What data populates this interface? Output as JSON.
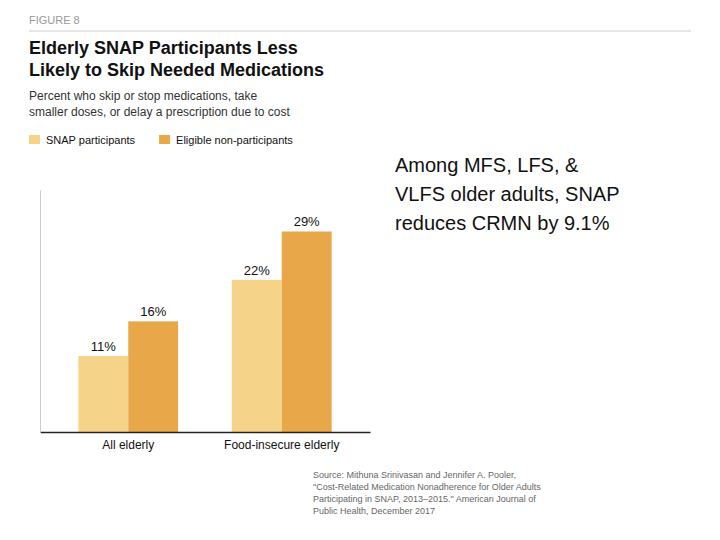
{
  "chart_data": {
    "type": "bar",
    "title": "Elderly SNAP Participants Less\nLikely to Skip Needed Medications",
    "subtitle": "Percent who skip or stop medications, take\nsmaller doses, or delay a prescription due to cost",
    "annotations": [
      "FIGURE 8",
      "Among MFS, LFS, &\nVLFS older adults, SNAP\nreduces CRMN by 9.1%",
      "Source: Mithuna Srinivasan and Jennifer A. Pooler,\n\"Cost-Related Medication Nonadherence for Older Adults\nParticipating in SNAP, 2013–2015.\" American Journal of\nPublic Health, December 2017"
    ],
    "categories": [
      "All elderly",
      "Food-insecure elderly"
    ],
    "series": [
      {
        "name": "SNAP participants",
        "color": "#F5D48A",
        "values": [
          11,
          22
        ],
        "value_labels": [
          "11%",
          "22%"
        ]
      },
      {
        "name": "Eligible non-participants",
        "color": "#E8A84A",
        "values": [
          16,
          29
        ],
        "value_labels": [
          "16%",
          "29%"
        ]
      }
    ],
    "ylim": [
      0,
      35
    ],
    "data_labels": true,
    "tick_labels": "x",
    "grid": false,
    "legend": "top"
  }
}
